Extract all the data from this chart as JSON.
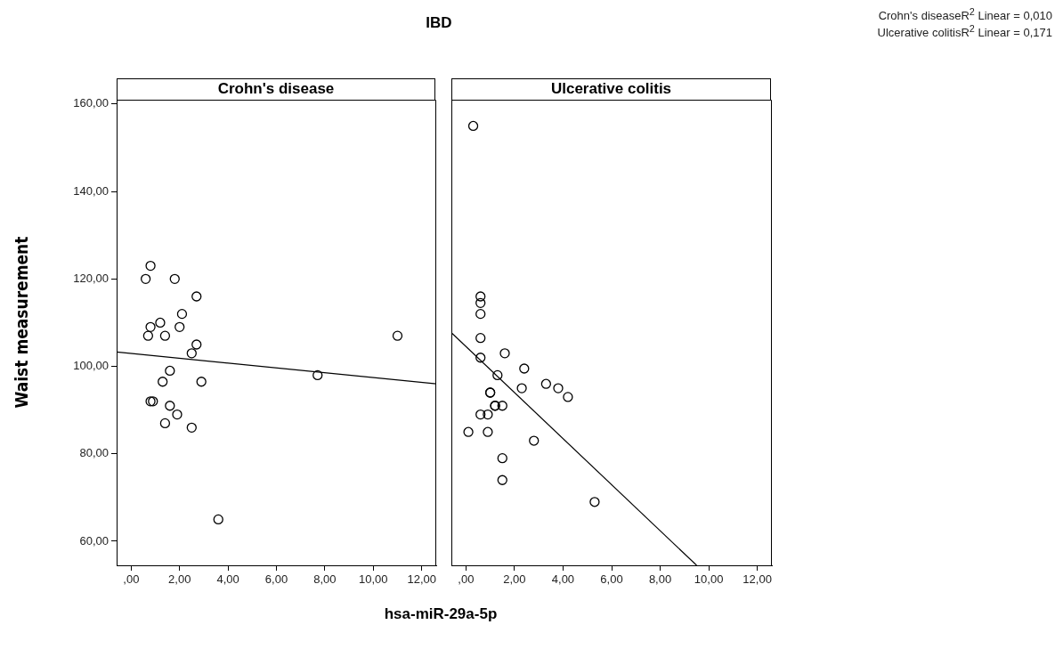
{
  "chart_data": [
    {
      "type": "scatter",
      "title": "Crohn's disease",
      "ylabel": "Waist measurement",
      "xlabel": "hsa-miR-29a-5p",
      "annotations": [
        "IBD",
        "Crohn's diseaseR$^{2}$ Linear = 0,010",
        "Ulcerative colitisR$^{2}$ Linear = 0,171"
      ],
      "xlim": [
        -0.6,
        12.6
      ],
      "ylim": [
        54.5,
        161
      ],
      "xticks": [
        {
          "value": 0,
          "label": ",00"
        },
        {
          "value": 2,
          "label": "2,00"
        },
        {
          "value": 4,
          "label": "4,00"
        },
        {
          "value": 6,
          "label": "6,00"
        },
        {
          "value": 8,
          "label": "8,00"
        },
        {
          "value": 10,
          "label": "10,00"
        },
        {
          "value": 12,
          "label": "12,00"
        }
      ],
      "yticks": [
        {
          "value": 60,
          "label": "60,00"
        },
        {
          "value": 80,
          "label": "80,00"
        },
        {
          "value": 100,
          "label": "100,00"
        },
        {
          "value": 120,
          "label": "120,00"
        },
        {
          "value": 140,
          "label": "140,00"
        },
        {
          "value": 160,
          "label": "160,00"
        }
      ],
      "series": [
        {
          "type": "scatter",
          "marker": "circle",
          "color": "#000000",
          "x": [
            0.8,
            0.6,
            1.8,
            2.7,
            2.1,
            1.2,
            0.8,
            2.0,
            0.7,
            1.4,
            11.0,
            2.7,
            2.5,
            1.6,
            7.7,
            1.3,
            2.9,
            0.8,
            0.9,
            1.6,
            1.9,
            1.4,
            2.5,
            3.6
          ],
          "values": [
            123,
            120,
            120,
            116,
            112,
            110,
            109,
            109,
            107,
            107,
            107,
            105,
            103,
            99,
            98,
            96.5,
            96.5,
            92,
            92,
            91,
            89,
            87,
            86,
            65
          ]
        },
        {
          "type": "line",
          "color": "#000000",
          "x": [
            -0.6,
            12.6
          ],
          "values": [
            103.3,
            96
          ]
        }
      ]
    },
    {
      "type": "scatter",
      "title": "Ulcerative colitis",
      "tick_labels": "x",
      "xlim": [
        -0.6,
        12.6
      ],
      "ylim": [
        54.5,
        161
      ],
      "xticks": [
        {
          "value": 0,
          "label": ",00"
        },
        {
          "value": 2,
          "label": "2,00"
        },
        {
          "value": 4,
          "label": "4,00"
        },
        {
          "value": 6,
          "label": "6,00"
        },
        {
          "value": 8,
          "label": "8,00"
        },
        {
          "value": 10,
          "label": "10,00"
        },
        {
          "value": 12,
          "label": "12,00"
        }
      ],
      "series": [
        {
          "type": "scatter",
          "marker": "circle",
          "color": "#000000",
          "x": [
            0.3,
            0.6,
            0.6,
            0.6,
            0.6,
            0.6,
            1.6,
            2.4,
            1.3,
            3.3,
            2.3,
            3.8,
            4.2,
            1.0,
            1.0,
            1.2,
            1.2,
            1.5,
            0.6,
            0.9,
            0.1,
            0.9,
            2.8,
            1.5,
            1.5,
            5.3
          ],
          "values": [
            155,
            116,
            114.5,
            112,
            106.5,
            102,
            103,
            99.5,
            98,
            96,
            95,
            95,
            93,
            94,
            94,
            91,
            91,
            91,
            89,
            89,
            85,
            85,
            83,
            79,
            74,
            69
          ]
        },
        {
          "type": "line",
          "color": "#000000",
          "x": [
            -0.6,
            9.5
          ],
          "values": [
            107.7,
            54.5
          ]
        }
      ]
    }
  ]
}
